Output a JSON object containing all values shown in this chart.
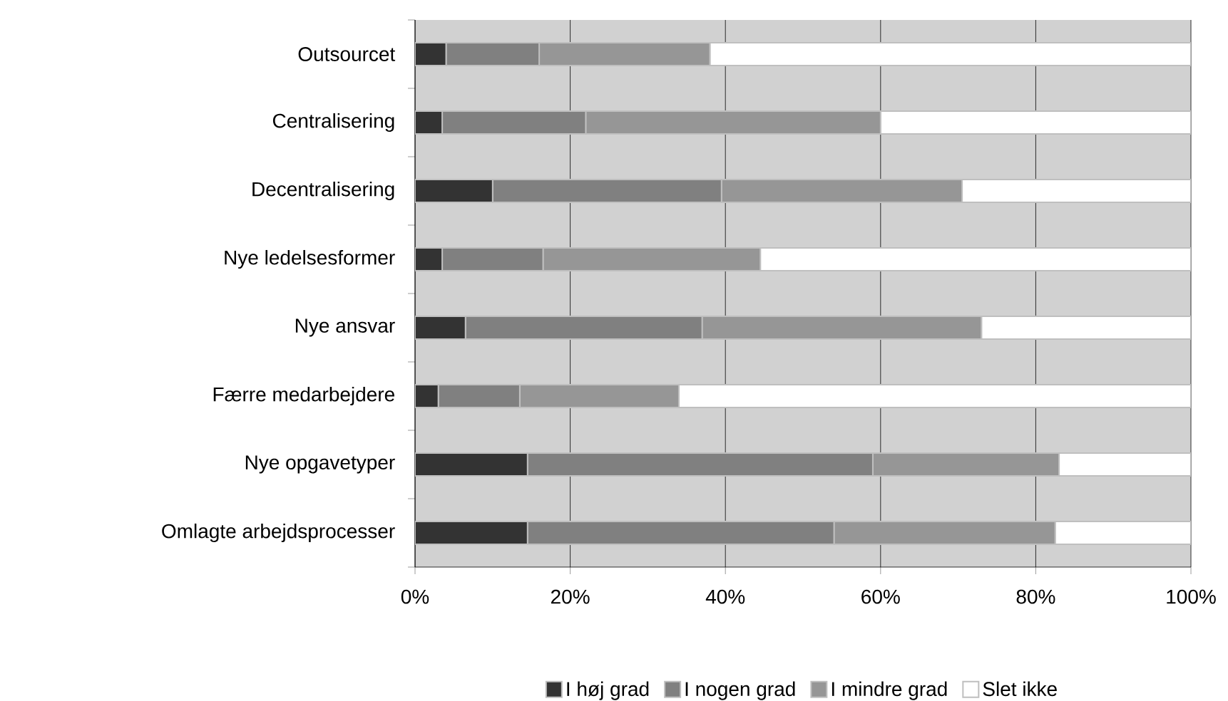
{
  "chart_data": {
    "type": "bar",
    "orientation": "horizontal",
    "stacked": true,
    "categories": [
      "Outsourcet",
      "Centralisering",
      "Decentralisering",
      "Nye ledelsesformer",
      "Nye ansvar",
      "Færre medarbejdere",
      "Nye opgavetyper",
      "Omlagte arbejdsprocesser"
    ],
    "series": [
      {
        "name": "I høj grad",
        "color": "#333333",
        "values": [
          4,
          3.5,
          10,
          3.5,
          6.5,
          3,
          14.5,
          14.5
        ]
      },
      {
        "name": "I nogen grad",
        "color": "#808080",
        "values": [
          12,
          18.5,
          29.5,
          13,
          30.5,
          10.5,
          44.5,
          39.5
        ]
      },
      {
        "name": "I mindre grad",
        "color": "#969696",
        "values": [
          22,
          38,
          31,
          28,
          36,
          20.5,
          24,
          28.5
        ]
      },
      {
        "name": "Slet ikke",
        "color": "#ffffff",
        "values": [
          62,
          40,
          29.5,
          55.5,
          27,
          66,
          17,
          17.5
        ]
      }
    ],
    "xlim": [
      0,
      100
    ],
    "xticks": [
      {
        "value": 0,
        "label": "0%"
      },
      {
        "value": 20,
        "label": "20%"
      },
      {
        "value": 40,
        "label": "40%"
      },
      {
        "value": 60,
        "label": "60%"
      },
      {
        "value": 80,
        "label": "80%"
      },
      {
        "value": 100,
        "label": "100%"
      }
    ],
    "grid": "x",
    "legend": "bottom"
  }
}
